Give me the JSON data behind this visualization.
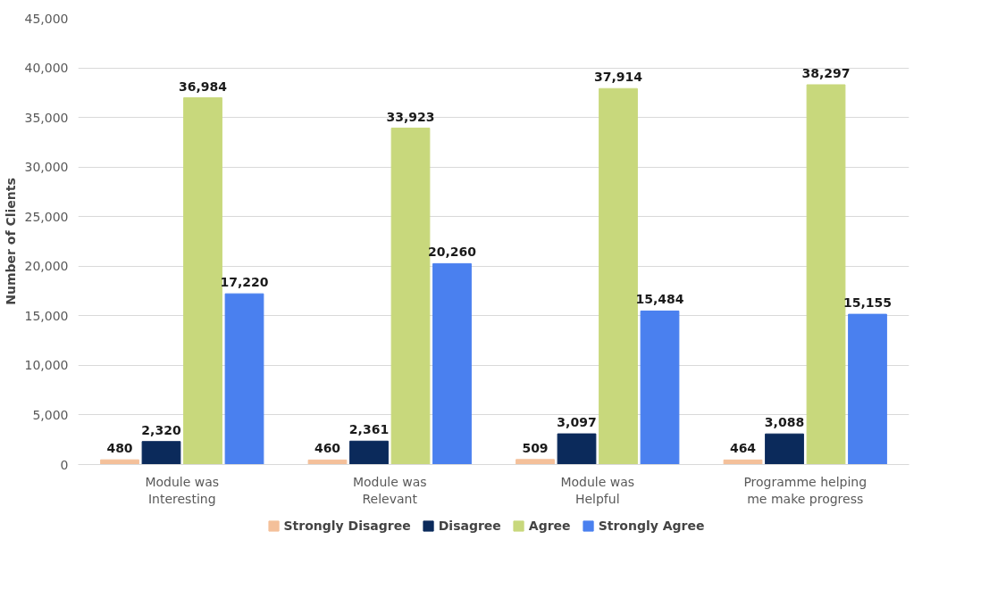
{
  "chart_data": {
    "type": "bar",
    "ylabel": "Number of Clients",
    "categories": [
      "Module was\nInteresting",
      "Module was\nRelevant",
      "Module was\nHelpful",
      "Programme helping\nme make progress"
    ],
    "series": [
      {
        "name": "Strongly Disagree",
        "color": "#f4c09a",
        "values": [
          480,
          460,
          509,
          464
        ],
        "value_labels": [
          "480",
          "460",
          "509",
          "464"
        ]
      },
      {
        "name": "Disagree",
        "color": "#0b2a5b",
        "values": [
          2320,
          2361,
          3097,
          3088
        ],
        "value_labels": [
          "2,320",
          "2,361",
          "3,097",
          "3,088"
        ]
      },
      {
        "name": "Agree",
        "color": "#c8d87c",
        "values": [
          36984,
          33923,
          37914,
          38297
        ],
        "value_labels": [
          "36,984",
          "33,923",
          "37,914",
          "38,297"
        ]
      },
      {
        "name": "Strongly Agree",
        "color": "#4a80ef",
        "values": [
          17220,
          20260,
          15484,
          15155
        ],
        "value_labels": [
          "17,220",
          "20,260",
          "15,484",
          "15,155"
        ]
      }
    ],
    "ylim": [
      0,
      45000
    ],
    "yticks": [
      {
        "value": 0,
        "label": "0"
      },
      {
        "value": 5000,
        "label": "5,000"
      },
      {
        "value": 10000,
        "label": "10,000"
      },
      {
        "value": 15000,
        "label": "15,000"
      },
      {
        "value": 20000,
        "label": "20,000"
      },
      {
        "value": 25000,
        "label": "25,000"
      },
      {
        "value": 30000,
        "label": "30,000"
      },
      {
        "value": 35000,
        "label": "35,000"
      },
      {
        "value": 40000,
        "label": "40,000"
      },
      {
        "value": 45000,
        "label": "45,000"
      }
    ],
    "grid": "y",
    "legend": "bottom"
  }
}
